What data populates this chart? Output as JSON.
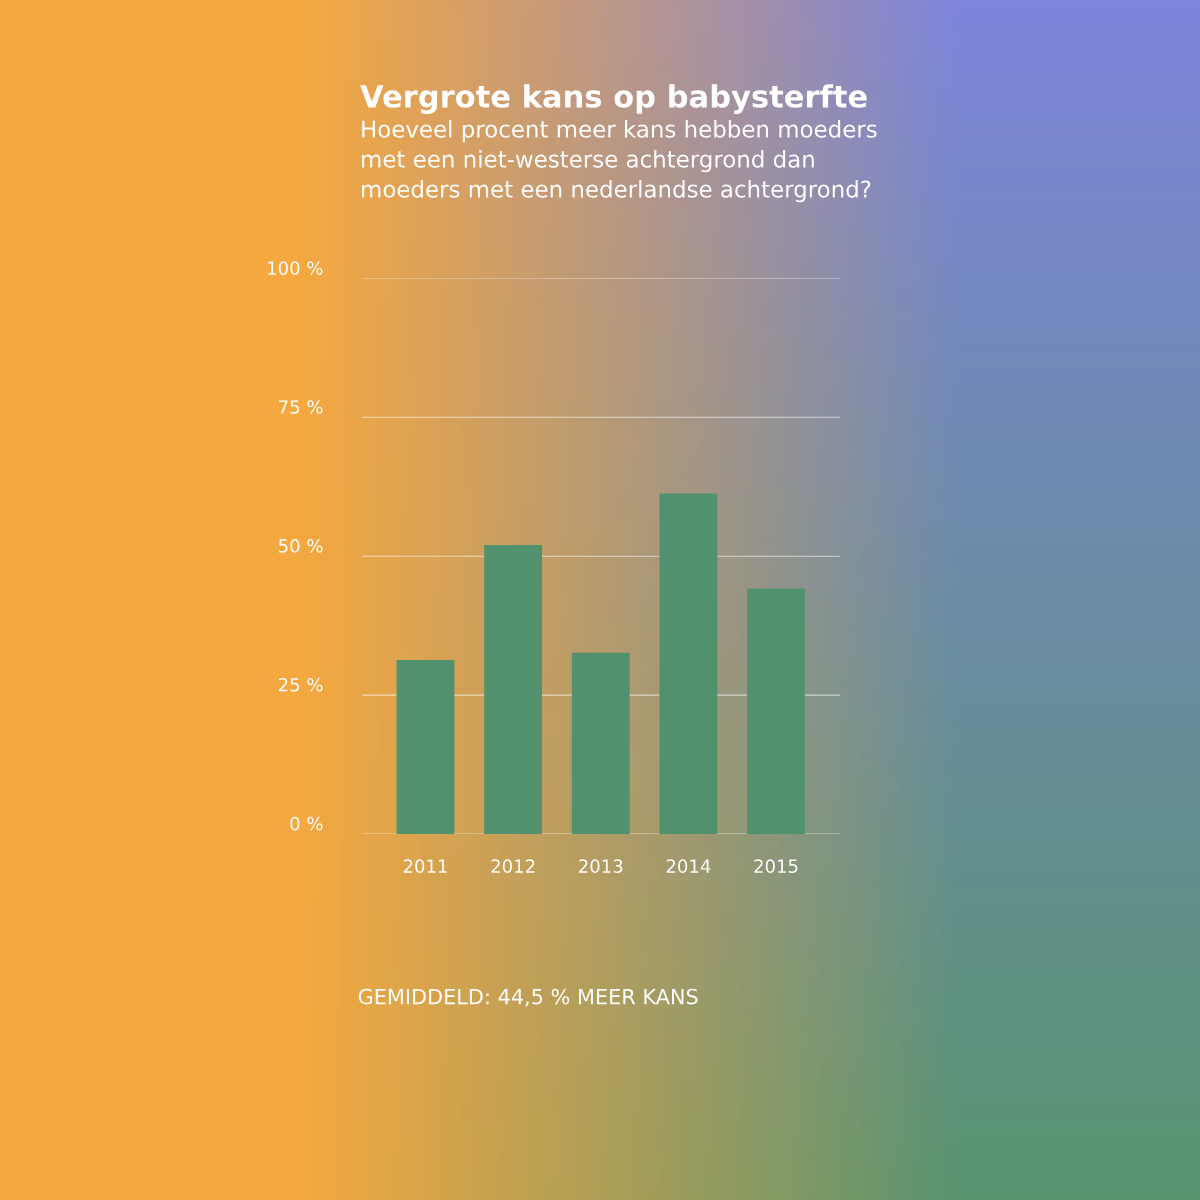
{
  "chart_data": {
    "type": "bar",
    "title": "Vergrote kans op babysterfte",
    "subtitle": "Hoeveel procent meer kans hebben moeders\nmet een niet-westerse achtergrond dan\nmoeders met een nederlandse achtergrond?",
    "categories": [
      "2011",
      "2012",
      "2013",
      "2014",
      "2015"
    ],
    "values": [
      31.3,
      52.0,
      32.6,
      61.3,
      44.2
    ],
    "color": "#52916e",
    "ylim": [
      0,
      100
    ],
    "yticks": [
      {
        "value": 0,
        "label": "0 %"
      },
      {
        "value": 25,
        "label": "25 %"
      },
      {
        "value": 50,
        "label": "50 %"
      },
      {
        "value": 75,
        "label": "75 %"
      },
      {
        "value": 100,
        "label": "100 %"
      }
    ],
    "grid": "y",
    "annotations": [
      "GEMIDDELD: 44,5 % MEER KANS"
    ]
  }
}
